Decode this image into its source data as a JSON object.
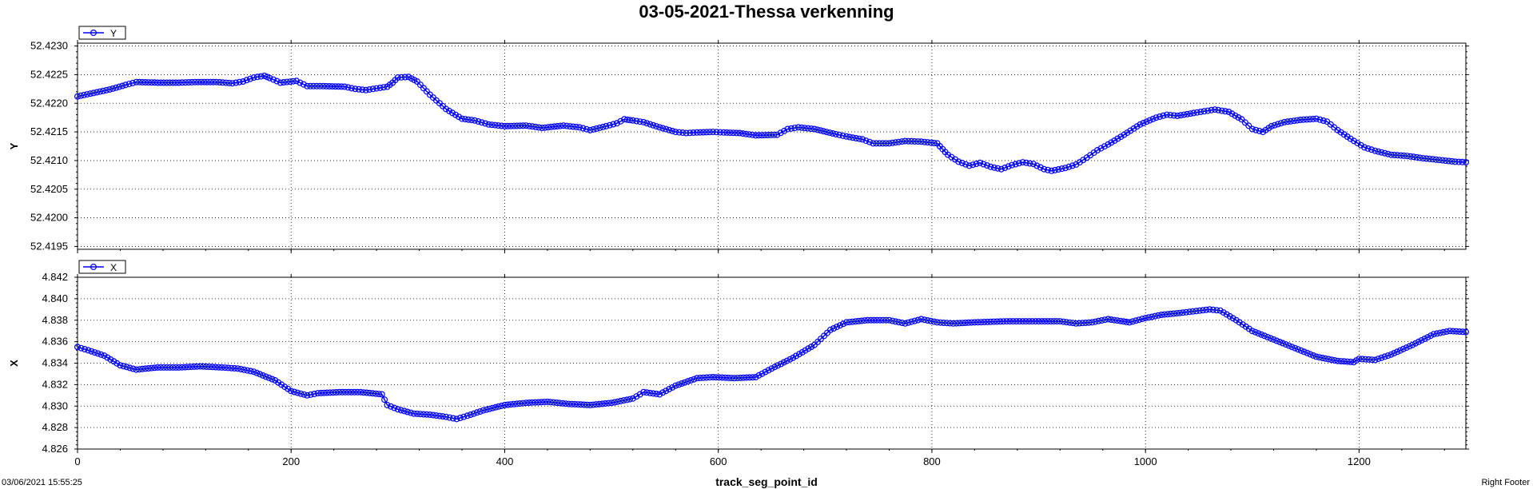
{
  "title": "03-05-2021-Thessa verkenning",
  "footer": {
    "left": "03/06/2021 15:55:25",
    "right": "Right Footer"
  },
  "colors": {
    "series": "#0000ff",
    "grid": "#000000",
    "background": "#ffffff"
  },
  "chart_data": [
    {
      "type": "line",
      "marker": "open-circle",
      "legend": "Y",
      "legend_position": "top-left",
      "ylabel": "Y",
      "xlabel": "track_seg_point_id",
      "xlim": [
        0,
        1300
      ],
      "ylim": [
        52.41945,
        52.42305
      ],
      "yticks": [
        "52.4195",
        "52.4200",
        "52.4205",
        "52.4210",
        "52.4215",
        "52.4220",
        "52.4225",
        "52.4230"
      ],
      "xticks": [
        "0",
        "200",
        "400",
        "600",
        "800",
        "1000",
        "1200"
      ],
      "grid": true,
      "series": [
        {
          "name": "Y",
          "points": [
            [
              0,
              52.42212
            ],
            [
              15,
              52.42218
            ],
            [
              30,
              52.42224
            ],
            [
              45,
              52.42232
            ],
            [
              55,
              52.42237
            ],
            [
              75,
              52.42236
            ],
            [
              95,
              52.42236
            ],
            [
              110,
              52.42237
            ],
            [
              130,
              52.42237
            ],
            [
              145,
              52.42235
            ],
            [
              155,
              52.42238
            ],
            [
              165,
              52.42245
            ],
            [
              175,
              52.42248
            ],
            [
              180,
              52.42244
            ],
            [
              190,
              52.42236
            ],
            [
              205,
              52.42239
            ],
            [
              215,
              52.4223
            ],
            [
              230,
              52.4223
            ],
            [
              250,
              52.42229
            ],
            [
              260,
              52.42225
            ],
            [
              270,
              52.42223
            ],
            [
              280,
              52.42226
            ],
            [
              290,
              52.42229
            ],
            [
              295,
              52.42236
            ],
            [
              300,
              52.42245
            ],
            [
              310,
              52.42246
            ],
            [
              318,
              52.42238
            ],
            [
              330,
              52.42215
            ],
            [
              345,
              52.4219
            ],
            [
              360,
              52.42173
            ],
            [
              372,
              52.4217
            ],
            [
              385,
              52.42163
            ],
            [
              400,
              52.4216
            ],
            [
              420,
              52.42161
            ],
            [
              435,
              52.42157
            ],
            [
              455,
              52.42161
            ],
            [
              470,
              52.42158
            ],
            [
              480,
              52.42153
            ],
            [
              495,
              52.4216
            ],
            [
              505,
              52.42165
            ],
            [
              512,
              52.42172
            ],
            [
              520,
              52.4217
            ],
            [
              530,
              52.42167
            ],
            [
              545,
              52.42158
            ],
            [
              560,
              52.4215
            ],
            [
              570,
              52.42148
            ],
            [
              580,
              52.42149
            ],
            [
              595,
              52.4215
            ],
            [
              605,
              52.42149
            ],
            [
              620,
              52.42148
            ],
            [
              635,
              52.42144
            ],
            [
              655,
              52.42145
            ],
            [
              665,
              52.42155
            ],
            [
              675,
              52.42158
            ],
            [
              690,
              52.42155
            ],
            [
              710,
              52.42146
            ],
            [
              720,
              52.42142
            ],
            [
              735,
              52.42137
            ],
            [
              745,
              52.4213
            ],
            [
              760,
              52.4213
            ],
            [
              775,
              52.42134
            ],
            [
              790,
              52.42133
            ],
            [
              805,
              52.4213
            ],
            [
              810,
              52.4212
            ],
            [
              815,
              52.4211
            ],
            [
              825,
              52.42098
            ],
            [
              835,
              52.42091
            ],
            [
              845,
              52.42096
            ],
            [
              855,
              52.42089
            ],
            [
              865,
              52.42085
            ],
            [
              875,
              52.42092
            ],
            [
              885,
              52.42097
            ],
            [
              895,
              52.42094
            ],
            [
              905,
              52.42085
            ],
            [
              912,
              52.42082
            ],
            [
              925,
              52.42087
            ],
            [
              935,
              52.42093
            ],
            [
              945,
              52.42105
            ],
            [
              955,
              52.42118
            ],
            [
              965,
              52.42128
            ],
            [
              980,
              52.42145
            ],
            [
              995,
              52.42163
            ],
            [
              1010,
              52.42175
            ],
            [
              1020,
              52.4218
            ],
            [
              1030,
              52.42178
            ],
            [
              1045,
              52.42183
            ],
            [
              1055,
              52.42186
            ],
            [
              1065,
              52.42189
            ],
            [
              1078,
              52.42185
            ],
            [
              1090,
              52.42172
            ],
            [
              1100,
              52.42155
            ],
            [
              1110,
              52.4215
            ],
            [
              1118,
              52.4216
            ],
            [
              1130,
              52.42167
            ],
            [
              1145,
              52.42171
            ],
            [
              1160,
              52.42173
            ],
            [
              1170,
              52.42168
            ],
            [
              1180,
              52.42153
            ],
            [
              1192,
              52.42138
            ],
            [
              1205,
              52.42123
            ],
            [
              1215,
              52.42117
            ],
            [
              1230,
              52.4211
            ],
            [
              1245,
              52.42108
            ],
            [
              1260,
              52.42104
            ],
            [
              1275,
              52.42101
            ],
            [
              1290,
              52.42098
            ],
            [
              1300,
              52.42097
            ]
          ]
        }
      ]
    },
    {
      "type": "line",
      "marker": "open-circle",
      "legend": "X",
      "legend_position": "top-left",
      "ylabel": "X",
      "xlabel": "track_seg_point_id",
      "xlim": [
        0,
        1300
      ],
      "ylim": [
        4.826,
        4.842
      ],
      "yticks": [
        "4.826",
        "4.828",
        "4.830",
        "4.832",
        "4.834",
        "4.836",
        "4.838",
        "4.840",
        "4.842"
      ],
      "xticks": [
        "0",
        "200",
        "400",
        "600",
        "800",
        "1000",
        "1200"
      ],
      "grid": true,
      "series": [
        {
          "name": "X",
          "points": [
            [
              0,
              4.8355
            ],
            [
              10,
              4.8352
            ],
            [
              25,
              4.8347
            ],
            [
              40,
              4.8338
            ],
            [
              55,
              4.8334
            ],
            [
              75,
              4.8336
            ],
            [
              95,
              4.8336
            ],
            [
              115,
              4.8337
            ],
            [
              135,
              4.8336
            ],
            [
              150,
              4.8335
            ],
            [
              165,
              4.8332
            ],
            [
              185,
              4.8324
            ],
            [
              200,
              4.8314
            ],
            [
              215,
              4.831
            ],
            [
              225,
              4.8312
            ],
            [
              245,
              4.8313
            ],
            [
              265,
              4.8313
            ],
            [
              285,
              4.8311
            ],
            [
              290,
              4.8301
            ],
            [
              300,
              4.8297
            ],
            [
              315,
              4.8293
            ],
            [
              330,
              4.8292
            ],
            [
              345,
              4.829
            ],
            [
              355,
              4.8288
            ],
            [
              365,
              4.8291
            ],
            [
              380,
              4.8296
            ],
            [
              400,
              4.8301
            ],
            [
              420,
              4.8303
            ],
            [
              440,
              4.8304
            ],
            [
              460,
              4.8302
            ],
            [
              480,
              4.8301
            ],
            [
              500,
              4.8303
            ],
            [
              520,
              4.8307
            ],
            [
              530,
              4.8313
            ],
            [
              545,
              4.8311
            ],
            [
              560,
              4.8319
            ],
            [
              580,
              4.8326
            ],
            [
              595,
              4.8327
            ],
            [
              615,
              4.8326
            ],
            [
              635,
              4.8327
            ],
            [
              650,
              4.8335
            ],
            [
              670,
              4.8345
            ],
            [
              690,
              4.8357
            ],
            [
              705,
              4.8371
            ],
            [
              720,
              4.8378
            ],
            [
              740,
              4.838
            ],
            [
              760,
              4.838
            ],
            [
              775,
              4.8377
            ],
            [
              790,
              4.8381
            ],
            [
              805,
              4.8378
            ],
            [
              820,
              4.8377
            ],
            [
              840,
              4.8378
            ],
            [
              870,
              4.8379
            ],
            [
              900,
              4.8379
            ],
            [
              920,
              4.8379
            ],
            [
              935,
              4.8377
            ],
            [
              950,
              4.8378
            ],
            [
              965,
              4.8381
            ],
            [
              985,
              4.8378
            ],
            [
              1000,
              4.8382
            ],
            [
              1015,
              4.8385
            ],
            [
              1035,
              4.8387
            ],
            [
              1060,
              4.839
            ],
            [
              1070,
              4.8389
            ],
            [
              1085,
              4.838
            ],
            [
              1100,
              4.837
            ],
            [
              1120,
              4.8362
            ],
            [
              1140,
              4.8354
            ],
            [
              1160,
              4.8346
            ],
            [
              1180,
              4.8342
            ],
            [
              1195,
              4.8341
            ],
            [
              1200,
              4.8344
            ],
            [
              1215,
              4.8343
            ],
            [
              1230,
              4.8348
            ],
            [
              1250,
              4.8357
            ],
            [
              1270,
              4.8367
            ],
            [
              1285,
              4.837
            ],
            [
              1300,
              4.8369
            ]
          ]
        }
      ]
    }
  ]
}
